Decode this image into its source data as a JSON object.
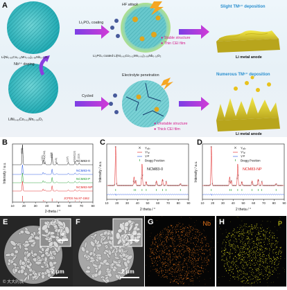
{
  "schematic": {
    "panel_label": "A",
    "hf_attack": "HF attack",
    "coating_label": "Li₃PO₄ coating",
    "doping_label": "Nb⁵⁺ doping",
    "cycled_label": "Cycled",
    "electrolyte_label": "Electrolyte penetration",
    "top_material": "Li(Ni₀.₈₃Co₀.₁₁Mn₀.₀₆)₀.₉₉Nb₀.₀₁O₂",
    "top_coated_material": "Li₃PO₄ coated Li(Ni₀.₈₃Co₀.₁₁Mn₀.₀₆)₀.₉₉Nb₀.₀₁O₂",
    "bottom_material": "LiNi₀.₈₃Co₀.₁₁Mn₀.₀₆O₂",
    "top_bullets": [
      "Stable structure",
      "Thin CEI film"
    ],
    "bottom_bullets": [
      "Unstable structure",
      "Thick CEI film"
    ],
    "top_deposition": "Slight TMⁿ⁺ deposition",
    "bottom_deposition": "Numerous TMⁿ⁺ deposition",
    "anode_label": "Li metal anode",
    "colors": {
      "top_deposition": "#2a8fcf",
      "bottom_deposition": "#2a8fcf",
      "bullet": "#d6198a"
    }
  },
  "panel_b": {
    "panel_label": "B",
    "ylabel": "Intensity / a.u.",
    "xlabel": "2-theta / °",
    "series_labels": [
      "NCM83-0",
      "NCM83-N",
      "NCM83-P",
      "NCM83-NP",
      "JCPDS No.87-1562"
    ],
    "peak_labels": [
      "(003)",
      "(101)",
      "(006)/(012)",
      "(104)",
      "(015)",
      "(107)",
      "(018)/(110)",
      "(113)"
    ],
    "tick_labels": [
      "10",
      "20",
      "30",
      "40",
      "50",
      "60",
      "70",
      "80"
    ]
  },
  "panel_c": {
    "panel_label": "C",
    "legend": [
      "Yₒᵦₛ",
      "Yᶜₐₗ",
      "Yᵈᶦᶠ",
      "Bragg Position"
    ],
    "sample": "NCM83-0",
    "ylabel": "Intensity / a.u.",
    "xlabel": "2 theta / °",
    "tick_labels": [
      "10",
      "20",
      "30",
      "40",
      "50",
      "60",
      "70",
      "80",
      "90"
    ]
  },
  "panel_d": {
    "panel_label": "D",
    "legend": [
      "Yₒᵦₛ",
      "Yᶜₐₗ",
      "Yᵈᶦᶠ",
      "Bragg Position"
    ],
    "sample": "NCM83-NP",
    "ylabel": "Intensity / a.u.",
    "xlabel": "2 theta / °",
    "tick_labels": [
      "10",
      "20",
      "30",
      "40",
      "50",
      "60",
      "70",
      "80",
      "90"
    ]
  },
  "panel_e": {
    "panel_label": "E",
    "inset_scale": "1 μm",
    "scale": "2 μm",
    "watermark": "© 大大的我"
  },
  "panel_f": {
    "panel_label": "F",
    "inset_scale": "1 μm",
    "scale": "2 μm"
  },
  "panel_g": {
    "panel_label": "G",
    "element": "Nb",
    "color": "#e8761c"
  },
  "panel_h": {
    "panel_label": "H",
    "element": "P",
    "color": "#e6e21e"
  },
  "chart_data": [
    {
      "type": "line",
      "title": "",
      "xlabel": "2-theta / °",
      "ylabel": "Intensity / a.u.",
      "xlim": [
        10,
        80
      ],
      "series": [
        {
          "name": "NCM83-0",
          "color": "#111111"
        },
        {
          "name": "NCM83-N",
          "color": "#1f4fe0"
        },
        {
          "name": "NCM83-P",
          "color": "#1a9a2a"
        },
        {
          "name": "NCM83-NP",
          "color": "#e01b1b"
        }
      ],
      "peaks_2theta": [
        18.7,
        36.7,
        38.3,
        44.5,
        48.6,
        58.6,
        64.5,
        68.1
      ],
      "peak_rel_intensity": [
        1.0,
        0.22,
        0.12,
        0.55,
        0.1,
        0.12,
        0.16,
        0.1
      ]
    },
    {
      "type": "scatter",
      "title": "",
      "xlabel": "2 theta / °",
      "ylabel": "Intensity / a.u.",
      "xlim": [
        10,
        90
      ],
      "peaks_2theta": [
        18.7,
        36.7,
        38.3,
        44.5,
        48.6,
        58.6,
        64.5,
        68.1,
        82
      ],
      "peak_rel_intensity": [
        1.0,
        0.22,
        0.12,
        0.55,
        0.1,
        0.12,
        0.16,
        0.1,
        0.05
      ]
    },
    {
      "type": "scatter",
      "title": "",
      "xlabel": "2 theta / °",
      "ylabel": "Intensity / a.u.",
      "xlim": [
        10,
        90
      ],
      "peaks_2theta": [
        18.7,
        36.7,
        38.3,
        44.5,
        48.6,
        58.6,
        64.5,
        68.1,
        82
      ],
      "peak_rel_intensity": [
        1.0,
        0.22,
        0.12,
        0.55,
        0.1,
        0.12,
        0.16,
        0.1,
        0.05
      ]
    }
  ]
}
